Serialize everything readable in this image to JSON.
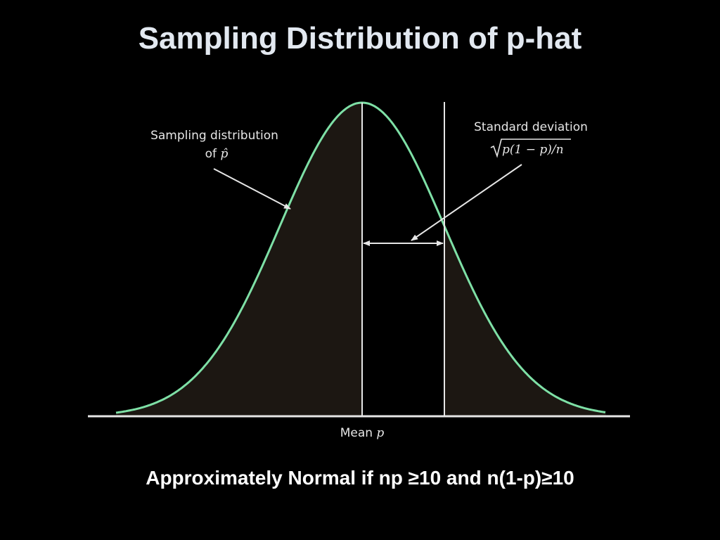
{
  "slide": {
    "title": "Sampling Distribution of p-hat",
    "footer": "Approximately Normal if np ≥10 and n(1-p)≥10"
  },
  "diagram": {
    "curve_label_line1": "Sampling distribution",
    "curve_label_line2_prefix": "of ",
    "curve_label_symbol": "p̂",
    "sd_label_line1": "Standard deviation",
    "sd_formula": "p(1 − p)/n",
    "mean_label_prefix": "Mean ",
    "mean_label_symbol": "p",
    "colors": {
      "curve": "#7ee0a6",
      "fill": "#1c1712",
      "lines": "#e6e6e6",
      "background": "#000000"
    }
  }
}
